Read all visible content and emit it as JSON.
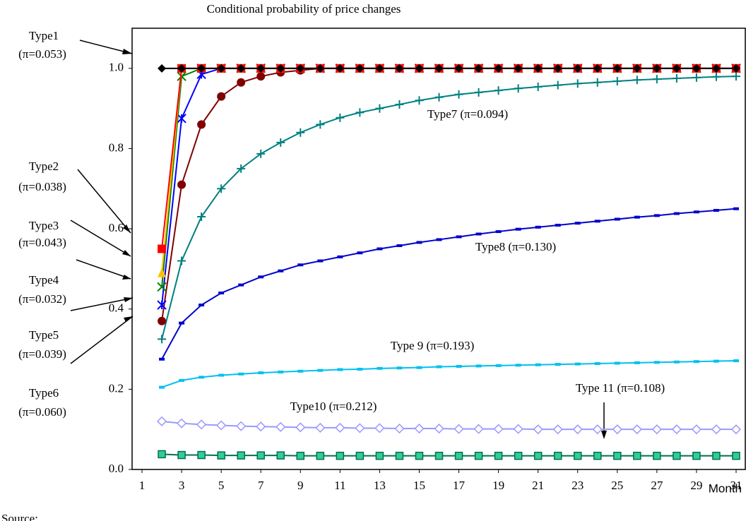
{
  "chart_data": {
    "type": "line",
    "title": "Conditional probability of price changes",
    "x_label": "Month",
    "note": "Source:",
    "x": [
      2,
      3,
      4,
      5,
      6,
      7,
      8,
      9,
      10,
      11,
      12,
      13,
      14,
      15,
      16,
      17,
      18,
      19,
      20,
      21,
      22,
      23,
      24,
      25,
      26,
      27,
      28,
      29,
      30,
      31
    ],
    "xlim": [
      0.5,
      31.5
    ],
    "xticks": [
      1,
      3,
      5,
      7,
      9,
      11,
      13,
      15,
      17,
      19,
      21,
      23,
      25,
      27,
      29,
      31
    ],
    "ylim": [
      0,
      1.1
    ],
    "yticks": [
      {
        "value": 0,
        "label": "0.0"
      },
      0.2,
      0.4,
      0.6,
      0.8,
      {
        "value": 1,
        "label": "1.0"
      }
    ],
    "series": [
      {
        "name": "Type1",
        "pi_label": "(π=0.053)",
        "color": "#000000",
        "marker": "diamond",
        "values": [
          1,
          1,
          1,
          1,
          1,
          1,
          1,
          1,
          1,
          1,
          1,
          1,
          1,
          1,
          1,
          1,
          1,
          1,
          1,
          1,
          1,
          1,
          1,
          1,
          1,
          1,
          1,
          1,
          1,
          1
        ]
      },
      {
        "name": "Type2",
        "pi_label": "(π=0.038)",
        "color": "#ff0000",
        "marker": "square",
        "values": [
          0.55,
          1,
          1,
          1,
          1,
          1,
          1,
          1,
          1,
          1,
          1,
          1,
          1,
          1,
          1,
          1,
          1,
          1,
          1,
          1,
          1,
          1,
          1,
          1,
          1,
          1,
          1,
          1,
          1,
          1
        ]
      },
      {
        "name": "Type3",
        "pi_label": "(π=0.043)",
        "color": "#ffc000",
        "marker": "triangle",
        "values": [
          0.49,
          1,
          1,
          1,
          1,
          1,
          1,
          1,
          1,
          1,
          1,
          1,
          1,
          1,
          1,
          1,
          1,
          1,
          1,
          1,
          1,
          1,
          1,
          1,
          1,
          1,
          1,
          1,
          1,
          1
        ]
      },
      {
        "name": "Type4",
        "pi_label": "(π=0.032)",
        "color": "#008000",
        "marker": "x",
        "values": [
          0.455,
          0.98,
          1,
          1,
          1,
          1,
          1,
          1,
          1,
          1,
          1,
          1,
          1,
          1,
          1,
          1,
          1,
          1,
          1,
          1,
          1,
          1,
          1,
          1,
          1,
          1,
          1,
          1,
          1,
          1
        ]
      },
      {
        "name": "Type5",
        "pi_label": "(π=0.039)",
        "color": "#0000ff",
        "marker": "star",
        "values": [
          0.41,
          0.875,
          0.985,
          1,
          1,
          1,
          1,
          1,
          1,
          1,
          1,
          1,
          1,
          1,
          1,
          1,
          1,
          1,
          1,
          1,
          1,
          1,
          1,
          1,
          1,
          1,
          1,
          1,
          1,
          1
        ]
      },
      {
        "name": "Type6",
        "pi_label": "(π=0.060)",
        "color": "#800000",
        "marker": "circle",
        "values": [
          0.37,
          0.71,
          0.86,
          0.93,
          0.965,
          0.98,
          0.99,
          0.995,
          1,
          1,
          1,
          1,
          1,
          1,
          1,
          1,
          1,
          1,
          1,
          1,
          1,
          1,
          1,
          1,
          1,
          1,
          1,
          1,
          1,
          1
        ]
      },
      {
        "name": "Type7",
        "pi_label": "(π=0.094)",
        "color": "#008080",
        "marker": "plus",
        "values": [
          0.325,
          0.52,
          0.63,
          0.7,
          0.75,
          0.787,
          0.815,
          0.84,
          0.86,
          0.877,
          0.89,
          0.9,
          0.91,
          0.92,
          0.928,
          0.935,
          0.94,
          0.945,
          0.95,
          0.954,
          0.958,
          0.962,
          0.965,
          0.968,
          0.971,
          0.973,
          0.975,
          0.977,
          0.979,
          0.98
        ]
      },
      {
        "name": "Type8",
        "pi_label": "(π=0.130)",
        "color": "#0000cc",
        "marker": "dash",
        "values": [
          0.275,
          0.365,
          0.41,
          0.44,
          0.46,
          0.48,
          0.495,
          0.51,
          0.52,
          0.53,
          0.54,
          0.55,
          0.558,
          0.566,
          0.573,
          0.58,
          0.587,
          0.593,
          0.599,
          0.604,
          0.609,
          0.614,
          0.619,
          0.624,
          0.629,
          0.633,
          0.638,
          0.642,
          0.646,
          0.65
        ]
      },
      {
        "name": "Type 9",
        "pi_label": "(π=0.193)",
        "color": "#00c0f0",
        "marker": "dash",
        "values": [
          0.205,
          0.222,
          0.23,
          0.235,
          0.238,
          0.241,
          0.243,
          0.245,
          0.247,
          0.249,
          0.25,
          0.252,
          0.253,
          0.254,
          0.256,
          0.257,
          0.258,
          0.259,
          0.26,
          0.261,
          0.262,
          0.263,
          0.264,
          0.265,
          0.266,
          0.267,
          0.268,
          0.269,
          0.27,
          0.271
        ]
      },
      {
        "name": "Type10",
        "pi_label": "(π=0.212)",
        "color": "#9999ff",
        "marker": "diamond-open",
        "values": [
          0.12,
          0.115,
          0.112,
          0.11,
          0.108,
          0.107,
          0.106,
          0.105,
          0.104,
          0.104,
          0.103,
          0.103,
          0.102,
          0.102,
          0.102,
          0.101,
          0.101,
          0.101,
          0.101,
          0.1,
          0.1,
          0.1,
          0.1,
          0.1,
          0.1,
          0.1,
          0.1,
          0.1,
          0.1,
          0.1
        ]
      },
      {
        "name": "Type 11",
        "pi_label": "(π=0.108)",
        "color": "#007050",
        "marker": "square-open",
        "values": [
          0.038,
          0.036,
          0.036,
          0.035,
          0.035,
          0.035,
          0.035,
          0.034,
          0.034,
          0.034,
          0.034,
          0.034,
          0.034,
          0.034,
          0.034,
          0.034,
          0.034,
          0.034,
          0.034,
          0.034,
          0.034,
          0.034,
          0.034,
          0.034,
          0.034,
          0.034,
          0.034,
          0.034,
          0.034,
          0.034
        ]
      }
    ]
  }
}
